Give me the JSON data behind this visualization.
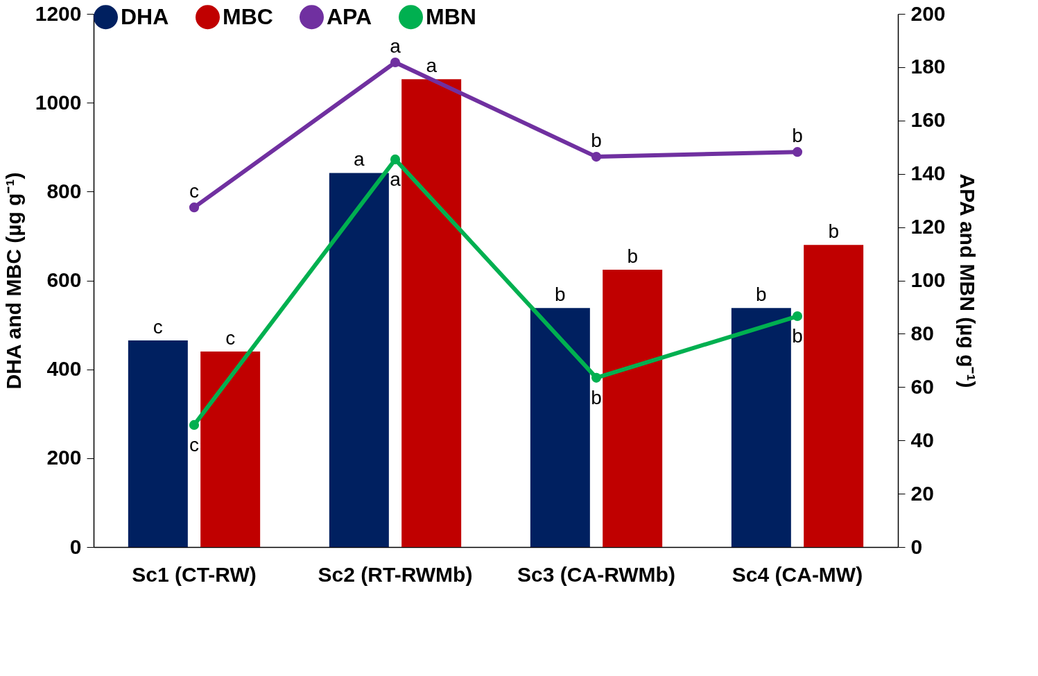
{
  "chart_data": {
    "type": "bar",
    "categories": [
      "Sc1 (CT-RW)",
      "Sc2 (RT-RWMb)",
      "Sc3 (CA-RWMb)",
      "Sc4 (CA-MW)"
    ],
    "ylabel": "DHA and MBC (µg g⁻¹)",
    "y2label": "APA and MBN (µg g⁻¹)",
    "ylim": [
      0,
      1200
    ],
    "yticks": [
      0,
      200,
      400,
      600,
      800,
      1000,
      1200
    ],
    "y2lim": [
      0,
      200
    ],
    "y2ticks": [
      0,
      20,
      40,
      60,
      80,
      100,
      120,
      140,
      160,
      180,
      200
    ],
    "series": [
      {
        "name": "DHA",
        "color": "#002060",
        "values": [
          465,
          842,
          538,
          538
        ],
        "value_labels": [
          "c",
          "a",
          "b",
          "b"
        ]
      },
      {
        "name": "MBC",
        "color": "#c00000",
        "values": [
          440,
          1053,
          624,
          680
        ],
        "value_labels": [
          "c",
          "a",
          "b",
          "b"
        ]
      },
      {
        "name": "APA",
        "type": "line",
        "axis": "y2",
        "color": "#7030a0",
        "values": [
          127.4,
          181.8,
          146.4,
          148.2
        ],
        "value_labels": [
          "c",
          "a",
          "b",
          "b"
        ]
      },
      {
        "name": "MBN",
        "type": "line",
        "axis": "y2",
        "color": "#00b050",
        "values": [
          45.8,
          145.4,
          63.5,
          86.6
        ],
        "value_labels": [
          "c",
          "a",
          "b",
          "b"
        ]
      }
    ],
    "marker": "circle",
    "line_style": "solid",
    "grid": false,
    "legend": "top"
  }
}
